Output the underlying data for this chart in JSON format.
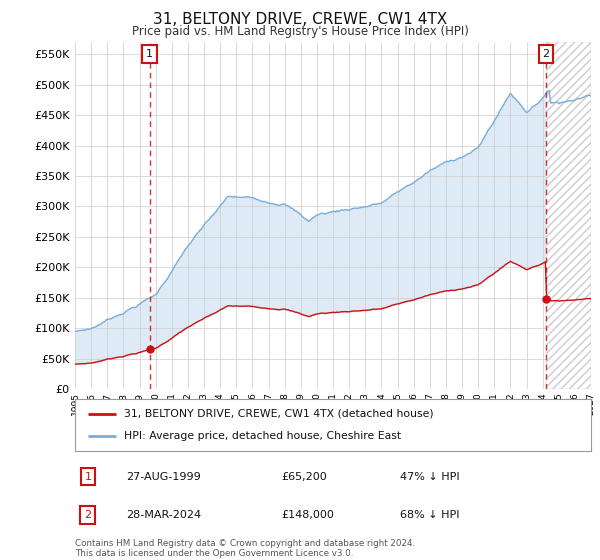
{
  "title": "31, BELTONY DRIVE, CREWE, CW1 4TX",
  "subtitle": "Price paid vs. HM Land Registry's House Price Index (HPI)",
  "hpi_label": "HPI: Average price, detached house, Cheshire East",
  "property_label": "31, BELTONY DRIVE, CREWE, CW1 4TX (detached house)",
  "transaction1_date": "27-AUG-1999",
  "transaction1_price": 65200,
  "transaction1_pct": "47% ↓ HPI",
  "transaction2_date": "28-MAR-2024",
  "transaction2_price": 148000,
  "transaction2_pct": "68% ↓ HPI",
  "footer": "Contains HM Land Registry data © Crown copyright and database right 2024.\nThis data is licensed under the Open Government Licence v3.0.",
  "ylim": [
    0,
    570000
  ],
  "yticks": [
    0,
    50000,
    100000,
    150000,
    200000,
    250000,
    300000,
    350000,
    400000,
    450000,
    500000,
    550000
  ],
  "hpi_color": "#7aaddb",
  "property_color": "#cc1111",
  "fill_color": "#deeaf5",
  "background_color": "#ffffff",
  "grid_color": "#cccccc",
  "annotation_box_color": "#cc1111",
  "hatch_color": "#bbbbbb",
  "t1_year_float": 1999.63,
  "t2_year_float": 2024.21,
  "xmin": 1995,
  "xmax": 2027
}
